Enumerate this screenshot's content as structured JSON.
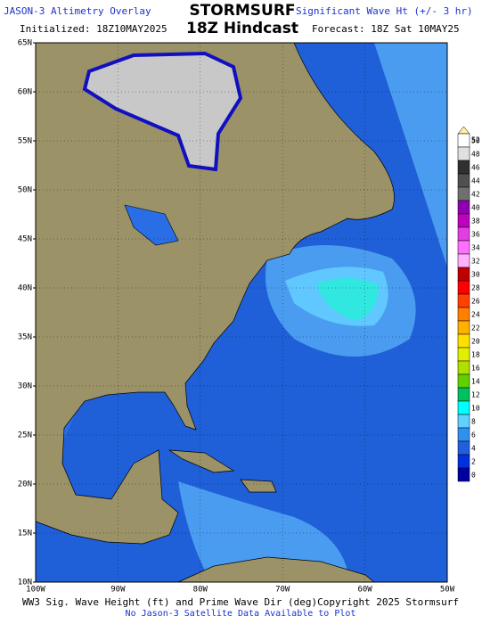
{
  "header": {
    "overlay": "JASON-3 Altimetry Overlay",
    "initialized": "Initialized: 18Z10MAY2025",
    "brand": "STORMSURF",
    "run": "18Z Hindcast",
    "parameter": "Significant Wave Ht (+/- 3 hr)",
    "forecast": "Forecast: 18Z Sat 10MAY25"
  },
  "map": {
    "lat_labels": [
      "65N",
      "60N",
      "55N",
      "50N",
      "45N",
      "40N",
      "35N",
      "30N",
      "25N",
      "20N",
      "15N",
      "10N"
    ],
    "lon_labels": [
      "100W",
      "90W",
      "80W",
      "70W",
      "60W",
      "50W"
    ]
  },
  "legend": {
    "levels": [
      52,
      50,
      48,
      46,
      44,
      42,
      40,
      38,
      36,
      34,
      32,
      30,
      28,
      26,
      24,
      22,
      20,
      18,
      16,
      14,
      12,
      10,
      8,
      6,
      4,
      2,
      0
    ],
    "colors": [
      "#fff0a0",
      "#ffffff",
      "#e0e0e0",
      "#303030",
      "#505050",
      "#707070",
      "#9000b0",
      "#c000c0",
      "#e040e0",
      "#ff70ff",
      "#ffb0ff",
      "#c00000",
      "#ff0000",
      "#ff4000",
      "#ff8000",
      "#ffb000",
      "#ffe000",
      "#e0f000",
      "#b0e000",
      "#60d000",
      "#00c060",
      "#00ffff",
      "#60d0ff",
      "#3090f0",
      "#2060e0",
      "#0030e0",
      "#0000a0"
    ]
  },
  "footer": {
    "caption": "WW3 Sig. Wave Height (ft) and Prime Wave Dir (deg)Copyright 2025 Stormsurf",
    "note": "No Jason-3 Satellite Data Available to Plot"
  }
}
